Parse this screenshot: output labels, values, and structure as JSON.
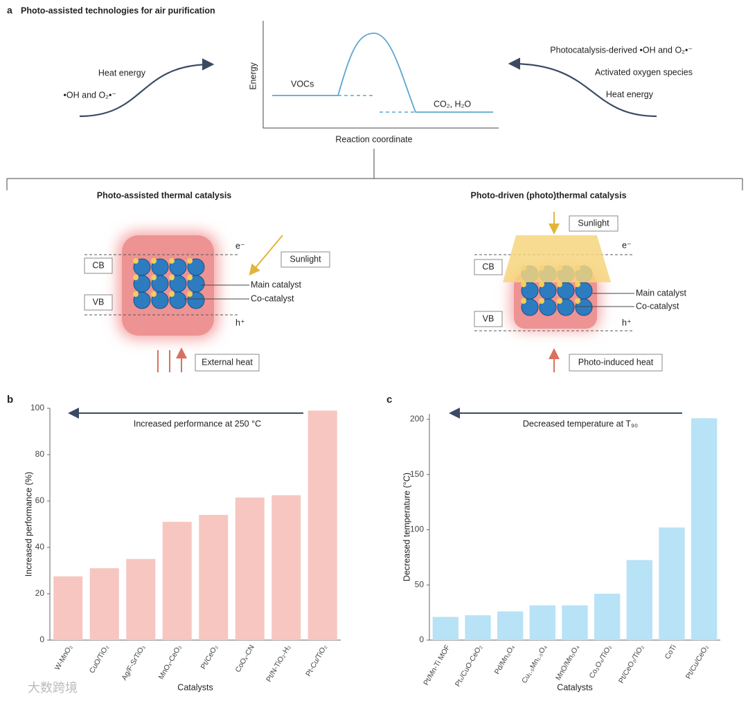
{
  "diagram": {
    "panel_label": "a",
    "title": "Photo-assisted technologies for air purification",
    "energy": {
      "y_label": "Energy",
      "x_label": "Reaction coordinate",
      "reactant": "VOCs",
      "product": "CO₂, H₂O"
    },
    "left_text": [
      "Heat energy",
      "•OH and O₂•⁻"
    ],
    "right_text": [
      "Photocatalysis-derived •OH and O₂•⁻",
      "Activated oxygen species",
      "Heat energy"
    ],
    "panels": [
      {
        "title": "Photo-assisted thermal catalysis",
        "e": "e⁻",
        "cb": "CB",
        "vb": "VB",
        "h": "h⁺",
        "sunlight": "Sunlight",
        "main": "Main catalyst",
        "co": "Co-catalyst",
        "heat": "External heat"
      },
      {
        "title": "Photo-driven (photo)thermal catalysis",
        "e": "e⁻",
        "cb": "CB",
        "vb": "VB",
        "h": "h⁺",
        "sunlight": "Sunlight",
        "main": "Main catalyst",
        "co": "Co-catalyst",
        "heat": "Photo-induced heat"
      }
    ],
    "watermark": "大数跨境"
  },
  "chart_data": [
    {
      "type": "bar",
      "panel_label": "b",
      "annotation": "Increased performance at 250 °C",
      "x_label": "Catalysts",
      "y_label": "Increased performance (%)",
      "categories": [
        "W-MnO₂",
        "CuO/TiO₂",
        "Ag/F-SrTiO₃",
        "MnOₓ-CeO₂",
        "Pt/CeO₂",
        "CoOₓ-CN",
        "Pt/N-TiO₂-H₂",
        "Pt-Cu/TiO₂"
      ],
      "values": [
        27.5,
        31,
        35,
        51,
        54,
        61.5,
        62.5,
        99
      ],
      "color": "#f7c6c0",
      "ylim": [
        0,
        100
      ],
      "yticks": [
        0,
        20,
        40,
        60,
        80,
        100
      ]
    },
    {
      "type": "bar",
      "panel_label": "c",
      "annotation": "Decreased temperature at T₉₀",
      "x_label": "Catalysts",
      "y_label": "Decreased temperature (°C)",
      "categories": [
        "Pt/Mn-Ti MOF",
        "Ptₛ/CuO-CeO₂",
        "Pd/Mn₃O₄",
        "Cu₁.₅Mn₁.₅O₄",
        "MnO/Mn₃O₄",
        "Co₃O₄/TiO₂",
        "Pt/CeO₂/TiO₂",
        "CoTi",
        "Pt/Cu/CeO₂"
      ],
      "values": [
        21,
        22.5,
        26,
        31.5,
        31.5,
        42,
        72.5,
        102,
        201
      ],
      "color": "#b8e2f6",
      "ylim": [
        0,
        205
      ],
      "yticks": [
        0,
        50,
        100,
        150,
        200
      ]
    }
  ]
}
